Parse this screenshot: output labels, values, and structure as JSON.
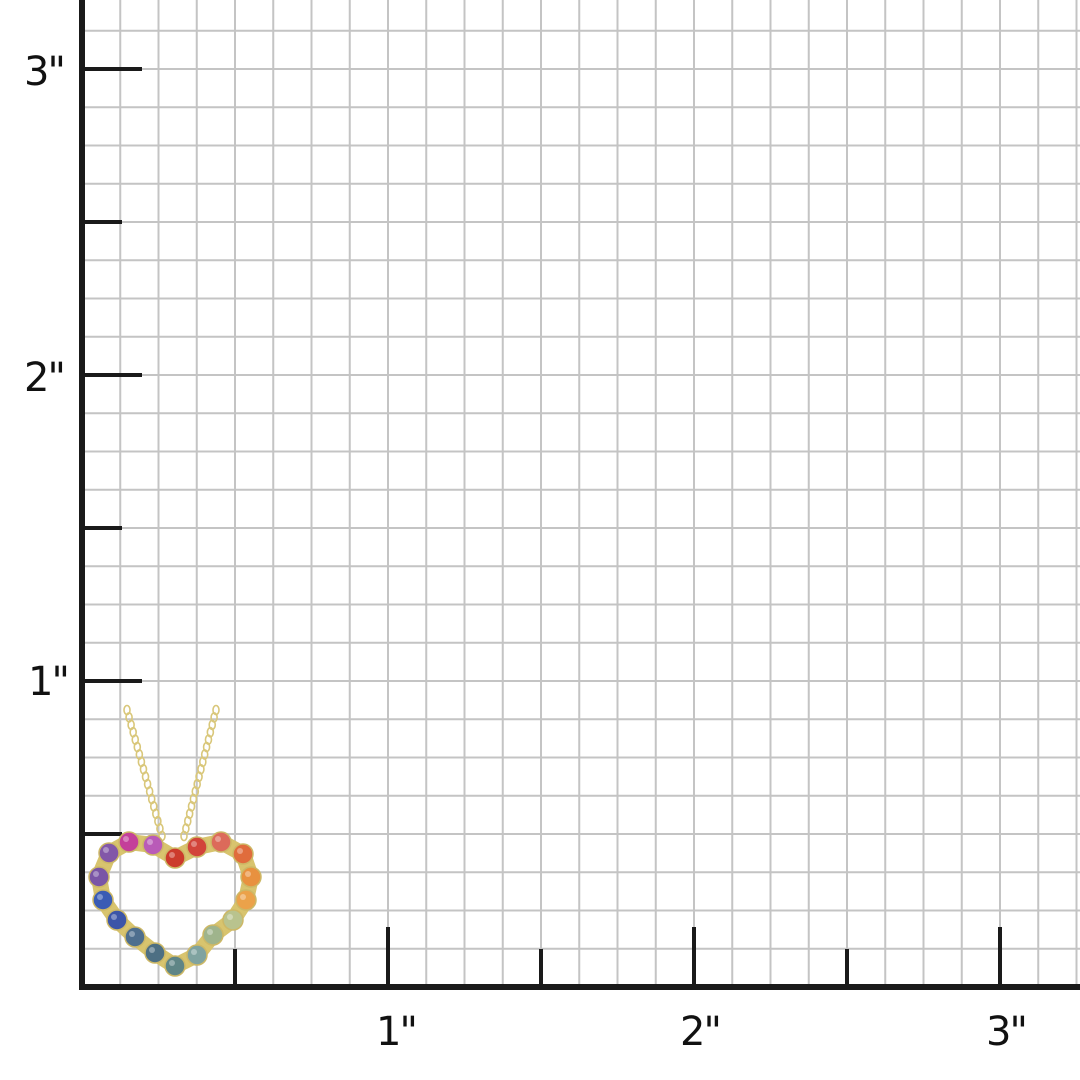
{
  "ruler": {
    "y_labels": [
      "3\"",
      "2\"",
      "1\""
    ],
    "x_labels": [
      "1\"",
      "2\"",
      "3\""
    ],
    "grid_color": "#c4c4c4",
    "axis_color": "#1a1a1a",
    "subdivisions_per_inch": 8
  },
  "pendant": {
    "chain_color": "#d9c77a",
    "setting_color": "#d8c46e",
    "gem_colors": [
      "#c43f9a",
      "#b95bb8",
      "#cc3b2c",
      "#d2443a",
      "#dc6a5a",
      "#e06c3c",
      "#e8913f",
      "#eba24a",
      "#b9c38e",
      "#9fb48c",
      "#7fa3a0",
      "#5f8586",
      "#4d6f83",
      "#4e6e8e",
      "#3c55a8",
      "#3a5cb4",
      "#7a55a6",
      "#8257a8"
    ]
  }
}
